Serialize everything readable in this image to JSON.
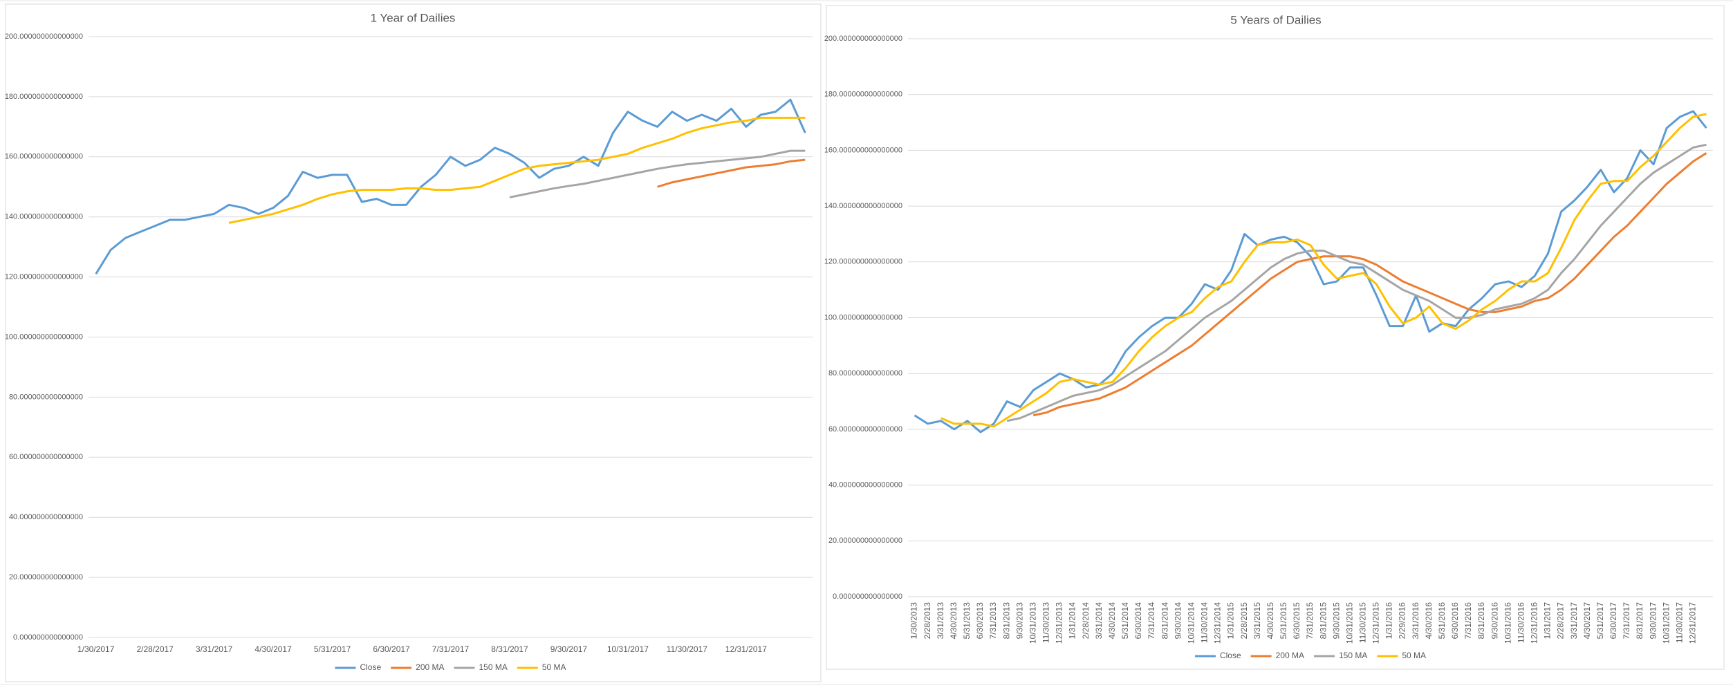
{
  "chart_data": [
    {
      "type": "line",
      "title": "1 Year of Dailies",
      "grid": true,
      "legend": "bottom",
      "categories": [
        "1/30/2017",
        null,
        null,
        null,
        "2/28/2017",
        null,
        null,
        null,
        "3/31/2017",
        null,
        null,
        null,
        "4/30/2017",
        null,
        null,
        null,
        "5/31/2017",
        null,
        null,
        null,
        "6/30/2017",
        null,
        null,
        null,
        "7/31/2017",
        null,
        null,
        null,
        "8/31/2017",
        null,
        null,
        null,
        "9/30/2017",
        null,
        null,
        null,
        "10/31/2017",
        null,
        null,
        null,
        "11/30/2017",
        null,
        null,
        null,
        "12/31/2017",
        null,
        null,
        null,
        null
      ],
      "ylim": [
        0,
        200
      ],
      "yticks": [
        {
          "value": 0,
          "label": "0.000000000000000"
        },
        {
          "value": 20,
          "label": "20.000000000000000"
        },
        {
          "value": 40,
          "label": "40.000000000000000"
        },
        {
          "value": 60,
          "label": "60.000000000000000"
        },
        {
          "value": 80,
          "label": "80.000000000000000"
        },
        {
          "value": 100,
          "label": "100.000000000000000"
        },
        {
          "value": 120,
          "label": "120.000000000000000"
        },
        {
          "value": 140,
          "label": "140.000000000000000"
        },
        {
          "value": 160,
          "label": "160.000000000000000"
        },
        {
          "value": 180,
          "label": "180.000000000000000"
        },
        {
          "value": 200,
          "label": "200.000000000000000"
        }
      ],
      "series": [
        {
          "name": "Close",
          "color": "#5b9bd5",
          "values": [
            121,
            129,
            133,
            135,
            137,
            139,
            139,
            140,
            141,
            144,
            143,
            141,
            143,
            147,
            155,
            153,
            154,
            154,
            145,
            146,
            144,
            144,
            150,
            154,
            160,
            157,
            159,
            163,
            161,
            158,
            153,
            156,
            157,
            160,
            157,
            168,
            175,
            172,
            170,
            175,
            172,
            174,
            172,
            176,
            170,
            174,
            175,
            179,
            168
          ]
        },
        {
          "name": "200 MA",
          "color": "#ed7d31",
          "values": [
            null,
            null,
            null,
            null,
            null,
            null,
            null,
            null,
            null,
            null,
            null,
            null,
            null,
            null,
            null,
            null,
            null,
            null,
            null,
            null,
            null,
            null,
            null,
            null,
            null,
            null,
            null,
            null,
            null,
            null,
            null,
            null,
            null,
            null,
            null,
            null,
            null,
            null,
            150,
            151.5,
            152.5,
            153.5,
            154.5,
            155.5,
            156.5,
            157,
            157.5,
            158.5,
            159
          ]
        },
        {
          "name": "150 MA",
          "color": "#a5a5a5",
          "values": [
            null,
            null,
            null,
            null,
            null,
            null,
            null,
            null,
            null,
            null,
            null,
            null,
            null,
            null,
            null,
            null,
            null,
            null,
            null,
            null,
            null,
            null,
            null,
            null,
            null,
            null,
            null,
            null,
            146.5,
            147.5,
            148.5,
            149.5,
            150.3,
            151,
            152,
            153,
            154,
            155,
            156,
            156.8,
            157.5,
            158,
            158.5,
            159,
            159.5,
            160,
            161,
            162,
            162
          ]
        },
        {
          "name": "50 MA",
          "color": "#ffc000",
          "values": [
            null,
            null,
            null,
            null,
            null,
            null,
            null,
            null,
            null,
            138,
            139,
            140,
            141,
            142.5,
            144,
            146,
            147.5,
            148.5,
            149,
            149,
            149,
            149.5,
            149.5,
            149,
            149,
            149.5,
            150,
            152,
            154,
            156,
            157,
            157.5,
            158,
            158.5,
            159,
            160,
            161,
            163,
            164.5,
            166,
            168,
            169.5,
            170.5,
            171.5,
            172,
            173,
            173,
            173,
            173
          ]
        }
      ]
    },
    {
      "type": "line",
      "title": "5 Years of Dailies",
      "grid": true,
      "legend": "bottom",
      "rotate_x_labels": true,
      "categories": [
        "1/30/2013",
        "2/28/2013",
        "3/31/2013",
        "4/30/2013",
        "5/31/2013",
        "6/30/2013",
        "7/31/2013",
        "8/31/2013",
        "9/30/2013",
        "10/31/2013",
        "11/30/2013",
        "12/31/2013",
        "1/31/2014",
        "2/28/2014",
        "3/31/2014",
        "4/30/2014",
        "5/31/2014",
        "6/30/2014",
        "7/31/2014",
        "8/31/2014",
        "9/30/2014",
        "10/31/2014",
        "11/30/2014",
        "12/31/2014",
        "1/31/2015",
        "2/28/2015",
        "3/31/2015",
        "4/30/2015",
        "5/31/2015",
        "6/30/2015",
        "7/31/2015",
        "8/31/2015",
        "9/30/2015",
        "10/31/2015",
        "11/30/2015",
        "12/31/2015",
        "1/31/2016",
        "2/29/2016",
        "3/31/2016",
        "4/30/2016",
        "5/31/2016",
        "6/30/2016",
        "7/31/2016",
        "8/31/2016",
        "9/30/2016",
        "10/31/2016",
        "11/30/2016",
        "12/31/2016",
        "1/31/2017",
        "2/28/2017",
        "3/31/2017",
        "4/30/2017",
        "5/31/2017",
        "6/30/2017",
        "7/31/2017",
        "8/31/2017",
        "9/30/2017",
        "10/31/2017",
        "11/30/2017",
        "12/31/2017",
        null
      ],
      "ylim": [
        0,
        200
      ],
      "yticks": [
        {
          "value": 0,
          "label": "0.000000000000000"
        },
        {
          "value": 20,
          "label": "20.000000000000000"
        },
        {
          "value": 40,
          "label": "40.000000000000000"
        },
        {
          "value": 60,
          "label": "60.000000000000000"
        },
        {
          "value": 80,
          "label": "80.000000000000000"
        },
        {
          "value": 100,
          "label": "100.000000000000000"
        },
        {
          "value": 120,
          "label": "120.000000000000000"
        },
        {
          "value": 140,
          "label": "140.000000000000000"
        },
        {
          "value": 160,
          "label": "160.000000000000000"
        },
        {
          "value": 180,
          "label": "180.000000000000000"
        },
        {
          "value": 200,
          "label": "200.000000000000000"
        }
      ],
      "series": [
        {
          "name": "Close",
          "color": "#5b9bd5",
          "values": [
            65,
            62,
            63,
            60,
            63,
            59,
            62,
            70,
            68,
            74,
            77,
            80,
            78,
            75,
            76,
            80,
            88,
            93,
            97,
            100,
            100,
            105,
            112,
            110,
            117,
            130,
            126,
            128,
            129,
            127,
            122,
            112,
            113,
            118,
            118,
            108,
            97,
            97,
            108,
            95,
            98,
            97,
            103,
            107,
            112,
            113,
            111,
            115,
            123,
            138,
            142,
            147,
            153,
            145,
            150,
            160,
            155,
            168,
            172,
            174,
            168
          ]
        },
        {
          "name": "200 MA",
          "color": "#ed7d31",
          "values": [
            null,
            null,
            null,
            null,
            null,
            null,
            null,
            null,
            null,
            65,
            66,
            68,
            69,
            70,
            71,
            73,
            75,
            78,
            81,
            84,
            87,
            90,
            94,
            98,
            102,
            106,
            110,
            114,
            117,
            120,
            121,
            122,
            122,
            122,
            121,
            119,
            116,
            113,
            111,
            109,
            107,
            105,
            103,
            102,
            102,
            103,
            104,
            106,
            107,
            110,
            114,
            119,
            124,
            129,
            133,
            138,
            143,
            148,
            152,
            156,
            159
          ]
        },
        {
          "name": "150 MA",
          "color": "#a5a5a5",
          "values": [
            null,
            null,
            null,
            null,
            null,
            null,
            null,
            63,
            64,
            66,
            68,
            70,
            72,
            73,
            74,
            76,
            79,
            82,
            85,
            88,
            92,
            96,
            100,
            103,
            106,
            110,
            114,
            118,
            121,
            123,
            124,
            124,
            122,
            120,
            119,
            116,
            113,
            110,
            108,
            106,
            103,
            100,
            100,
            101,
            103,
            104,
            105,
            107,
            110,
            116,
            121,
            127,
            133,
            138,
            143,
            148,
            152,
            155,
            158,
            161,
            162
          ]
        },
        {
          "name": "50 MA",
          "color": "#ffc000",
          "values": [
            null,
            null,
            64,
            62,
            62,
            62,
            61,
            64,
            67,
            70,
            73,
            77,
            78,
            77,
            76,
            77,
            82,
            88,
            93,
            97,
            100,
            102,
            107,
            111,
            113,
            120,
            126,
            127,
            127,
            128,
            126,
            119,
            114,
            115,
            116,
            112,
            104,
            98,
            100,
            104,
            98,
            96,
            99,
            103,
            106,
            110,
            113,
            113,
            116,
            125,
            135,
            142,
            148,
            149,
            149,
            154,
            158,
            163,
            168,
            172,
            173
          ]
        }
      ]
    }
  ]
}
